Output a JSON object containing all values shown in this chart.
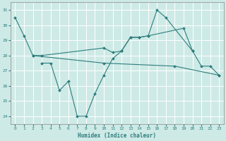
{
  "xlabel": "Humidex (Indice chaleur)",
  "xlim": [
    -0.5,
    23.5
  ],
  "ylim": [
    23.5,
    31.5
  ],
  "yticks": [
    24,
    25,
    26,
    27,
    28,
    29,
    30,
    31
  ],
  "xticks": [
    0,
    1,
    2,
    3,
    4,
    5,
    6,
    7,
    8,
    9,
    10,
    11,
    12,
    13,
    14,
    15,
    16,
    17,
    18,
    19,
    20,
    21,
    22,
    23
  ],
  "background_color": "#ceeae6",
  "grid_color": "#ffffff",
  "line_color": "#2d7d7d",
  "line1": {
    "x": [
      0,
      1,
      2,
      3,
      10,
      11,
      12,
      13,
      14,
      15,
      19,
      20
    ],
    "y": [
      30.5,
      29.3,
      28.0,
      28.0,
      28.5,
      28.2,
      28.3,
      29.2,
      29.2,
      29.3,
      29.8,
      28.3
    ]
  },
  "line2": {
    "x": [
      2,
      10,
      18,
      23
    ],
    "y": [
      28.0,
      27.5,
      27.3,
      26.7
    ]
  },
  "line3": {
    "x": [
      3,
      4,
      5,
      6,
      7,
      8,
      9,
      10,
      11,
      12,
      13,
      14,
      15,
      16,
      17,
      20,
      21,
      22,
      23
    ],
    "y": [
      27.5,
      27.5,
      25.7,
      26.3,
      24.0,
      24.0,
      25.5,
      26.7,
      27.8,
      28.3,
      29.2,
      29.2,
      29.3,
      31.0,
      30.5,
      28.3,
      27.3,
      27.3,
      26.7
    ]
  }
}
